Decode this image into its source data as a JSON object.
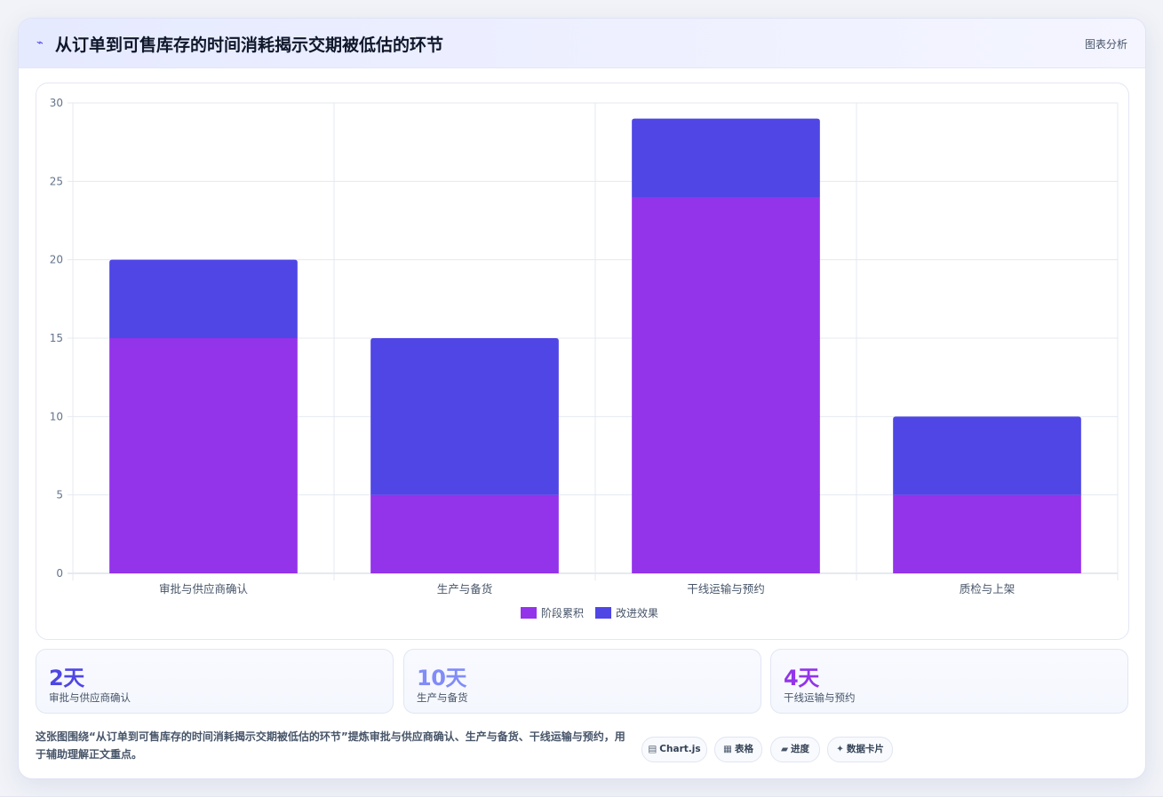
{
  "header": {
    "icon": "chart-line-icon",
    "title": "从订单到可售库存的时间消耗揭示交期被低估的环节",
    "right_label": "图表分析"
  },
  "chart_data": {
    "type": "bar",
    "stacked": true,
    "categories": [
      "审批与供应商确认",
      "生产与备货",
      "干线运输与预约",
      "质检与上架"
    ],
    "series": [
      {
        "name": "阶段累积",
        "color": "#9333ea",
        "values": [
          15,
          5,
          24,
          5
        ]
      },
      {
        "name": "改进效果",
        "color": "#4f46e5",
        "values": [
          5,
          10,
          5,
          5
        ]
      }
    ],
    "ylim": [
      0,
      30
    ],
    "yticks": [
      0,
      5,
      10,
      15,
      20,
      25,
      30
    ],
    "grid": true,
    "legend_position": "bottom"
  },
  "stats": [
    {
      "value": "2天",
      "label": "审批与供应商确认",
      "color": "#4f46e5"
    },
    {
      "value": "10天",
      "label": "生产与备货",
      "color": "#818cf8"
    },
    {
      "value": "4天",
      "label": "干线运输与预约",
      "color": "#9333ea"
    }
  ],
  "note": "这张图围绕“从订单到可售库存的时间消耗揭示交期被低估的环节”提炼审批与供应商确认、生产与备货、干线运输与预约，用于辅助理解正文重点。",
  "chips": [
    {
      "glyph": "▤",
      "icon": "chart-icon",
      "label": "Chart.js"
    },
    {
      "glyph": "▦",
      "icon": "table-icon",
      "label": "表格"
    },
    {
      "glyph": "▰",
      "icon": "progress-icon",
      "label": "进度"
    },
    {
      "glyph": "✦",
      "icon": "sparkle-icon",
      "label": "数据卡片"
    }
  ]
}
